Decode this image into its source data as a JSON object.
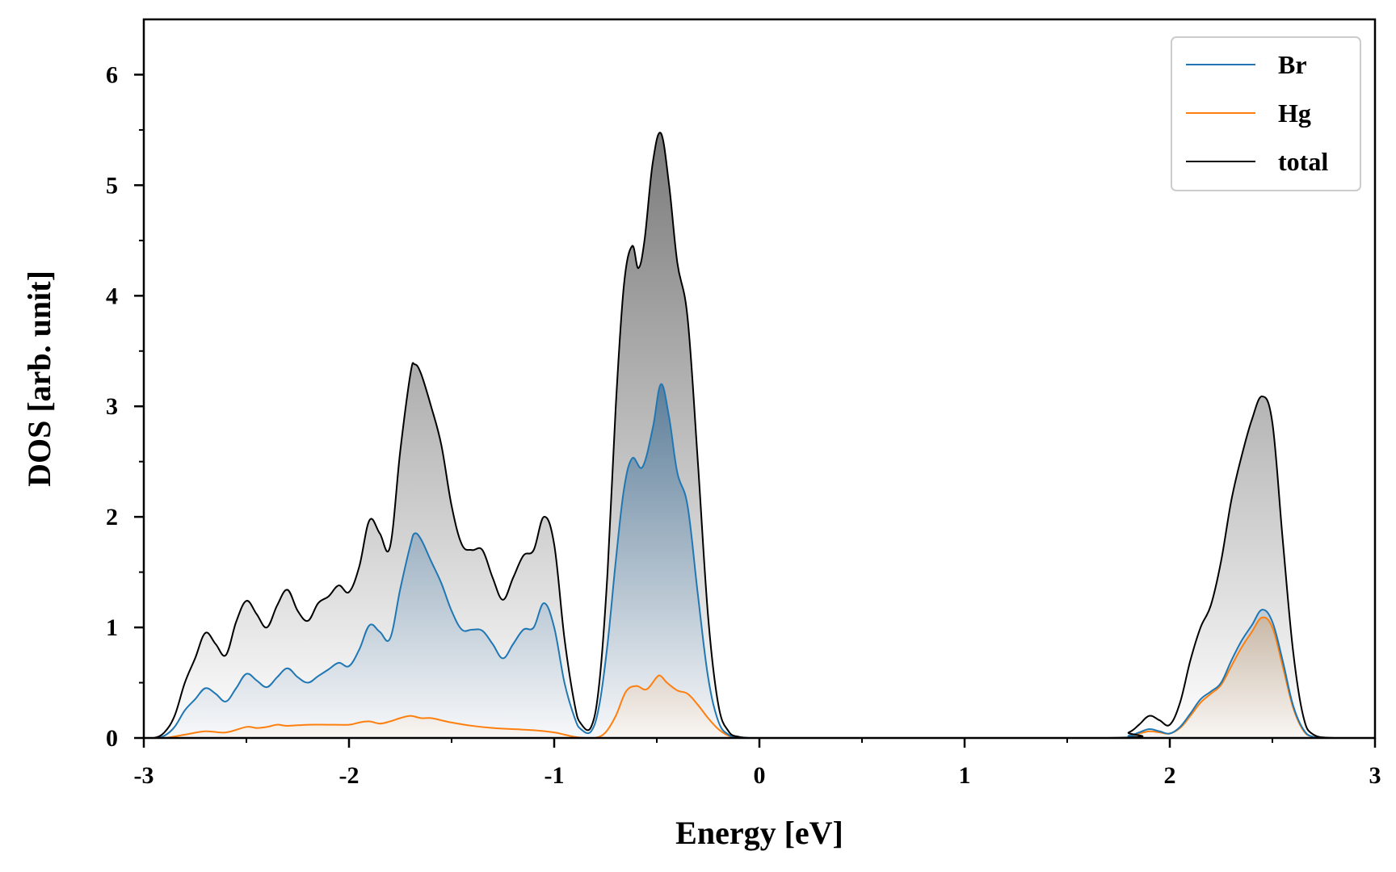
{
  "chart_data": {
    "type": "area",
    "title": "",
    "xlabel": "Energy [eV]",
    "ylabel": "DOS [arb. unit]",
    "xlim": [
      -3,
      3
    ],
    "ylim": [
      0,
      6.5
    ],
    "xticks": [
      {
        "v": -3,
        "label": "-3"
      },
      {
        "v": -2,
        "label": "-2"
      },
      {
        "v": -1,
        "label": "-1"
      },
      {
        "v": 0,
        "label": "0"
      },
      {
        "v": 1,
        "label": "1"
      },
      {
        "v": 2,
        "label": "2"
      },
      {
        "v": 3,
        "label": "3"
      }
    ],
    "yticks": [
      {
        "v": 0,
        "label": "0"
      },
      {
        "v": 1,
        "label": "1"
      },
      {
        "v": 2,
        "label": "2"
      },
      {
        "v": 3,
        "label": "3"
      },
      {
        "v": 4,
        "label": "4"
      },
      {
        "v": 5,
        "label": "5"
      },
      {
        "v": 6,
        "label": "6"
      }
    ],
    "grid": false,
    "legend_position": "top-right",
    "series": [
      {
        "name": "Br",
        "color": "#1f77b4",
        "fill": "blue-gradient",
        "x": [
          -3.0,
          -2.95,
          -2.9,
          -2.85,
          -2.8,
          -2.75,
          -2.7,
          -2.65,
          -2.6,
          -2.55,
          -2.5,
          -2.45,
          -2.4,
          -2.35,
          -2.3,
          -2.25,
          -2.2,
          -2.15,
          -2.1,
          -2.05,
          -2.0,
          -1.95,
          -1.9,
          -1.85,
          -1.8,
          -1.75,
          -1.7,
          -1.68,
          -1.65,
          -1.6,
          -1.55,
          -1.5,
          -1.45,
          -1.4,
          -1.35,
          -1.3,
          -1.25,
          -1.2,
          -1.15,
          -1.1,
          -1.05,
          -1.0,
          -0.95,
          -0.9,
          -0.87,
          -0.82,
          -0.78,
          -0.74,
          -0.7,
          -0.66,
          -0.62,
          -0.57,
          -0.52,
          -0.48,
          -0.44,
          -0.4,
          -0.35,
          -0.3,
          -0.25,
          -0.2,
          -0.15,
          -0.1,
          -0.05,
          0.0,
          1.7,
          1.8,
          1.85,
          1.9,
          1.95,
          2.0,
          2.05,
          2.1,
          2.15,
          2.2,
          2.25,
          2.3,
          2.35,
          2.4,
          2.45,
          2.5,
          2.55,
          2.6,
          2.65,
          2.7,
          2.8,
          3.0
        ],
        "y": [
          0.0,
          0.0,
          0.02,
          0.1,
          0.25,
          0.35,
          0.45,
          0.4,
          0.33,
          0.45,
          0.58,
          0.52,
          0.46,
          0.55,
          0.63,
          0.55,
          0.5,
          0.56,
          0.62,
          0.68,
          0.65,
          0.8,
          1.02,
          0.96,
          0.9,
          1.35,
          1.75,
          1.85,
          1.8,
          1.6,
          1.4,
          1.15,
          0.98,
          0.98,
          0.97,
          0.85,
          0.72,
          0.85,
          0.98,
          1.0,
          1.22,
          1.0,
          0.5,
          0.18,
          0.08,
          0.06,
          0.3,
          0.85,
          1.6,
          2.25,
          2.53,
          2.45,
          2.8,
          3.2,
          2.9,
          2.4,
          2.1,
          1.3,
          0.55,
          0.15,
          0.03,
          0.01,
          0.0,
          0.0,
          0.0,
          0.02,
          0.05,
          0.08,
          0.06,
          0.04,
          0.1,
          0.22,
          0.35,
          0.42,
          0.5,
          0.7,
          0.88,
          1.02,
          1.16,
          1.05,
          0.7,
          0.3,
          0.08,
          0.01,
          0.0,
          0.0
        ]
      },
      {
        "name": "Hg",
        "color": "#ff7f0e",
        "fill": "orange-gradient",
        "x": [
          -3.0,
          -2.9,
          -2.8,
          -2.7,
          -2.6,
          -2.5,
          -2.45,
          -2.4,
          -2.35,
          -2.3,
          -2.2,
          -2.1,
          -2.0,
          -1.95,
          -1.9,
          -1.85,
          -1.8,
          -1.75,
          -1.7,
          -1.65,
          -1.6,
          -1.55,
          -1.5,
          -1.4,
          -1.3,
          -1.2,
          -1.1,
          -1.0,
          -0.95,
          -0.9,
          -0.85,
          -0.8,
          -0.75,
          -0.7,
          -0.65,
          -0.6,
          -0.55,
          -0.5,
          -0.48,
          -0.45,
          -0.4,
          -0.35,
          -0.3,
          -0.25,
          -0.2,
          -0.15,
          -0.1,
          0.0,
          1.7,
          1.8,
          1.85,
          1.9,
          1.95,
          2.0,
          2.05,
          2.1,
          2.15,
          2.2,
          2.25,
          2.3,
          2.35,
          2.4,
          2.45,
          2.5,
          2.55,
          2.6,
          2.65,
          2.7,
          2.8,
          3.0
        ],
        "y": [
          0.0,
          0.0,
          0.03,
          0.06,
          0.05,
          0.1,
          0.09,
          0.1,
          0.12,
          0.11,
          0.12,
          0.12,
          0.12,
          0.14,
          0.15,
          0.13,
          0.15,
          0.18,
          0.2,
          0.18,
          0.18,
          0.16,
          0.14,
          0.11,
          0.09,
          0.08,
          0.07,
          0.05,
          0.03,
          0.01,
          0.0,
          0.0,
          0.05,
          0.2,
          0.42,
          0.47,
          0.44,
          0.55,
          0.56,
          0.5,
          0.43,
          0.4,
          0.3,
          0.18,
          0.08,
          0.02,
          0.0,
          0.0,
          0.0,
          0.02,
          0.04,
          0.06,
          0.05,
          0.04,
          0.09,
          0.2,
          0.32,
          0.4,
          0.48,
          0.65,
          0.82,
          0.96,
          1.09,
          1.0,
          0.65,
          0.28,
          0.07,
          0.01,
          0.0,
          0.0
        ]
      },
      {
        "name": "total",
        "color": "#000000",
        "fill": "gray-gradient",
        "x": [
          -3.0,
          -2.95,
          -2.9,
          -2.85,
          -2.8,
          -2.75,
          -2.7,
          -2.65,
          -2.6,
          -2.55,
          -2.5,
          -2.45,
          -2.4,
          -2.35,
          -2.3,
          -2.25,
          -2.2,
          -2.15,
          -2.1,
          -2.05,
          -2.0,
          -1.95,
          -1.9,
          -1.85,
          -1.8,
          -1.75,
          -1.7,
          -1.68,
          -1.65,
          -1.6,
          -1.55,
          -1.5,
          -1.45,
          -1.4,
          -1.35,
          -1.3,
          -1.25,
          -1.2,
          -1.15,
          -1.1,
          -1.05,
          -1.0,
          -0.95,
          -0.9,
          -0.87,
          -0.82,
          -0.78,
          -0.74,
          -0.7,
          -0.66,
          -0.62,
          -0.59,
          -0.56,
          -0.52,
          -0.48,
          -0.44,
          -0.4,
          -0.35,
          -0.3,
          -0.25,
          -0.2,
          -0.15,
          -0.1,
          -0.05,
          0.0,
          1.7,
          1.8,
          1.85,
          1.9,
          1.95,
          2.0,
          2.05,
          2.1,
          2.15,
          2.2,
          2.25,
          2.3,
          2.35,
          2.4,
          2.45,
          2.5,
          2.55,
          2.6,
          2.65,
          2.7,
          2.8,
          3.0
        ],
        "y": [
          0.0,
          0.0,
          0.05,
          0.2,
          0.5,
          0.72,
          0.95,
          0.85,
          0.75,
          1.05,
          1.24,
          1.12,
          1.0,
          1.2,
          1.34,
          1.15,
          1.06,
          1.22,
          1.28,
          1.38,
          1.32,
          1.55,
          1.97,
          1.85,
          1.73,
          2.6,
          3.3,
          3.38,
          3.3,
          3.0,
          2.65,
          2.1,
          1.75,
          1.7,
          1.7,
          1.45,
          1.25,
          1.45,
          1.65,
          1.7,
          2.0,
          1.75,
          0.9,
          0.3,
          0.13,
          0.1,
          0.5,
          1.5,
          3.0,
          4.1,
          4.45,
          4.25,
          4.5,
          5.2,
          5.47,
          5.0,
          4.3,
          3.8,
          2.5,
          1.1,
          0.3,
          0.06,
          0.01,
          0.0,
          0.0,
          0.0,
          0.05,
          0.12,
          0.2,
          0.16,
          0.12,
          0.32,
          0.7,
          1.0,
          1.2,
          1.6,
          2.15,
          2.55,
          2.88,
          3.09,
          2.85,
          1.8,
          0.8,
          0.2,
          0.03,
          0.0,
          0.0
        ]
      }
    ]
  }
}
